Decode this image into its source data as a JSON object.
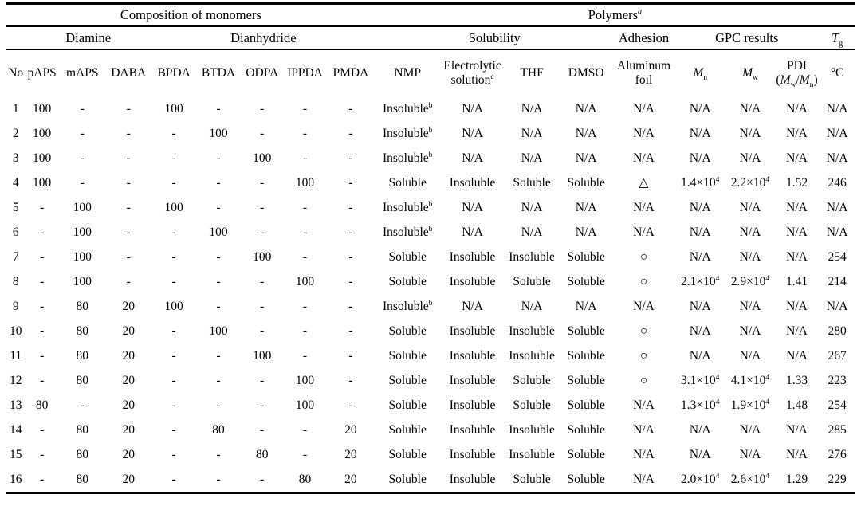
{
  "colors": {
    "background": "#ffffff",
    "text": "#000000",
    "rule": "#000000"
  },
  "table": {
    "group_headers": [
      {
        "label": "Composition of monomers",
        "colspan": 9
      },
      {
        "label": "Polymers^{*a*}",
        "colspan": 9
      }
    ],
    "subgroup_headers": [
      {
        "label": "",
        "colspan": 1
      },
      {
        "label": "Diamine",
        "colspan": 3
      },
      {
        "label": "Dianhydride",
        "colspan": 5
      },
      {
        "label": "Solubility",
        "colspan": 4
      },
      {
        "label": "Adhesion",
        "colspan": 1
      },
      {
        "label": "GPC results",
        "colspan": 3
      },
      {
        "label": "*T*_{g}",
        "colspan": 1
      }
    ],
    "column_headers": [
      "No",
      "pAPS",
      "mAPS",
      "DABA",
      "BPDA",
      "BTDA",
      "ODPA",
      "IPPDA",
      "PMDA",
      "NMP",
      "Electrolytic\nsolution^{c}",
      "THF",
      "DMSO",
      "Aluminum\nfoil",
      "*M*_{n}",
      "*M*_{w}",
      "PDI\n(*M*_{w}/*M*_{n})",
      "°C"
    ],
    "rows": [
      [
        "1",
        "100",
        "-",
        "-",
        "100",
        "-",
        "-",
        "-",
        "-",
        "Insoluble^{b}",
        "N/A",
        "N/A",
        "N/A",
        "N/A",
        "N/A",
        "N/A",
        "N/A",
        "N/A"
      ],
      [
        "2",
        "100",
        "-",
        "-",
        "-",
        "100",
        "-",
        "-",
        "-",
        "Insoluble^{b}",
        "N/A",
        "N/A",
        "N/A",
        "N/A",
        "N/A",
        "N/A",
        "N/A",
        "N/A"
      ],
      [
        "3",
        "100",
        "-",
        "-",
        "-",
        "-",
        "100",
        "-",
        "-",
        "Insoluble^{b}",
        "N/A",
        "N/A",
        "N/A",
        "N/A",
        "N/A",
        "N/A",
        "N/A",
        "N/A"
      ],
      [
        "4",
        "100",
        "-",
        "-",
        "-",
        "-",
        "-",
        "100",
        "-",
        "Soluble",
        "Insoluble",
        "Soluble",
        "Soluble",
        "△",
        "1.4×10^{4}",
        "2.2×10^{4}",
        "1.52",
        "246"
      ],
      [
        "5",
        "-",
        "100",
        "-",
        "100",
        "-",
        "-",
        "-",
        "-",
        "Insoluble^{b}",
        "N/A",
        "N/A",
        "N/A",
        "N/A",
        "N/A",
        "N/A",
        "N/A",
        "N/A"
      ],
      [
        "6",
        "-",
        "100",
        "-",
        "-",
        "100",
        "-",
        "-",
        "-",
        "Insoluble^{b}",
        "N/A",
        "N/A",
        "N/A",
        "N/A",
        "N/A",
        "N/A",
        "N/A",
        "N/A"
      ],
      [
        "7",
        "-",
        "100",
        "-",
        "-",
        "-",
        "100",
        "-",
        "-",
        "Soluble",
        "Insoluble",
        "Insoluble",
        "Soluble",
        "○",
        "N/A",
        "N/A",
        "N/A",
        "254"
      ],
      [
        "8",
        "-",
        "100",
        "-",
        "-",
        "-",
        "-",
        "100",
        "-",
        "Soluble",
        "Insoluble",
        "Soluble",
        "Soluble",
        "○",
        "2.1×10^{4}",
        "2.9×10^{4}",
        "1.41",
        "214"
      ],
      [
        "9",
        "-",
        "80",
        "20",
        "100",
        "-",
        "-",
        "-",
        "-",
        "Insoluble^{b}",
        "N/A",
        "N/A",
        "N/A",
        "N/A",
        "N/A",
        "N/A",
        "N/A",
        "N/A"
      ],
      [
        "10",
        "-",
        "80",
        "20",
        "-",
        "100",
        "-",
        "-",
        "-",
        "Soluble",
        "Insoluble",
        "Insoluble",
        "Soluble",
        "○",
        "N/A",
        "N/A",
        "N/A",
        "280"
      ],
      [
        "11",
        "-",
        "80",
        "20",
        "-",
        "-",
        "100",
        "-",
        "-",
        "Soluble",
        "Insoluble",
        "Insoluble",
        "Soluble",
        "○",
        "N/A",
        "N/A",
        "N/A",
        "267"
      ],
      [
        "12",
        "-",
        "80",
        "20",
        "-",
        "-",
        "-",
        "100",
        "-",
        "Soluble",
        "Insoluble",
        "Soluble",
        "Soluble",
        "○",
        "3.1×10^{4}",
        "4.1×10^{4}",
        "1.33",
        "223"
      ],
      [
        "13",
        "80",
        "-",
        "20",
        "-",
        "-",
        "-",
        "100",
        "-",
        "Soluble",
        "Insoluble",
        "Soluble",
        "Soluble",
        "N/A",
        "1.3×10^{4}",
        "1.9×10^{4}",
        "1.48",
        "254"
      ],
      [
        "14",
        "-",
        "80",
        "20",
        "-",
        "80",
        "-",
        "-",
        "20",
        "Soluble",
        "Insoluble",
        "Insoluble",
        "Soluble",
        "N/A",
        "N/A",
        "N/A",
        "N/A",
        "285"
      ],
      [
        "15",
        "-",
        "80",
        "20",
        "-",
        "-",
        "80",
        "-",
        "20",
        "Soluble",
        "Insoluble",
        "Insoluble",
        "Soluble",
        "N/A",
        "N/A",
        "N/A",
        "N/A",
        "276"
      ],
      [
        "16",
        "-",
        "80",
        "20",
        "-",
        "-",
        "-",
        "80",
        "20",
        "Soluble",
        "Insoluble",
        "Soluble",
        "Soluble",
        "N/A",
        "2.0×10^{4}",
        "2.6×10^{4}",
        "1.29",
        "229"
      ]
    ]
  }
}
